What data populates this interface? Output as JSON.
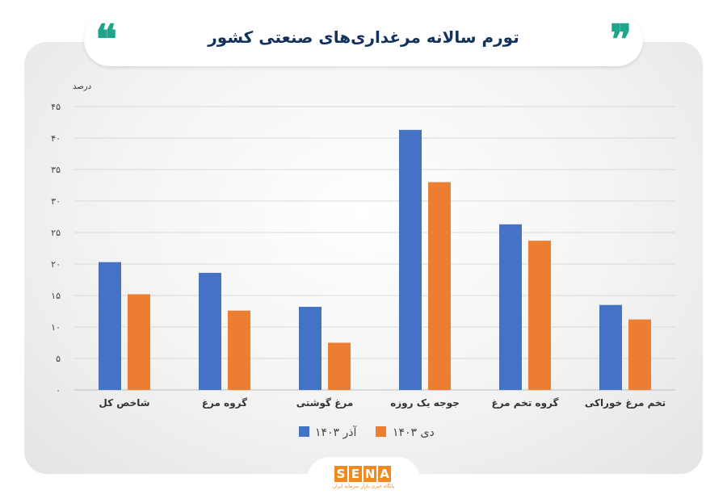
{
  "header": {
    "title": "تورم سالانه مرغداری‌های  صنعتی کشور",
    "quote_open": "❝",
    "quote_close": "❞"
  },
  "colors": {
    "series_1": "#4472c4",
    "series_2": "#ed7d31",
    "accent": "#1fa58c",
    "title": "#13325b"
  },
  "chart_data": {
    "type": "bar",
    "title": "تورم سالانه مرغداری‌های  صنعتی کشور",
    "ylabel": "درصد",
    "xlabel": "",
    "ylim": [
      0,
      45
    ],
    "yticks": [
      0,
      5,
      10,
      15,
      20,
      25,
      30,
      35,
      40,
      45
    ],
    "ytick_labels": [
      "۰",
      "۵",
      "۱۰",
      "۱۵",
      "۲۰",
      "۲۵",
      "۳۰",
      "۳۵",
      "۴۰",
      "۴۵"
    ],
    "grid": true,
    "legend_position": "bottom",
    "categories": [
      "شاخص کل",
      "گروه مرغ",
      "مرغ گوشتی",
      "جوجه یک روزه",
      "گروه تخم مرغ",
      "تخم مرغ خوراکی"
    ],
    "series": [
      {
        "name": "آذر ۱۴۰۳",
        "values": [
          20.3,
          18.6,
          13.2,
          41.3,
          26.3,
          13.5
        ]
      },
      {
        "name": "دی ۱۴۰۳",
        "values": [
          15.2,
          12.6,
          7.5,
          33.0,
          23.7,
          11.2
        ]
      }
    ]
  },
  "logo": {
    "letters": [
      "S",
      "E",
      "N",
      "A"
    ],
    "subtitle": "پایگاه خبری بازار سرمایه ایران"
  }
}
